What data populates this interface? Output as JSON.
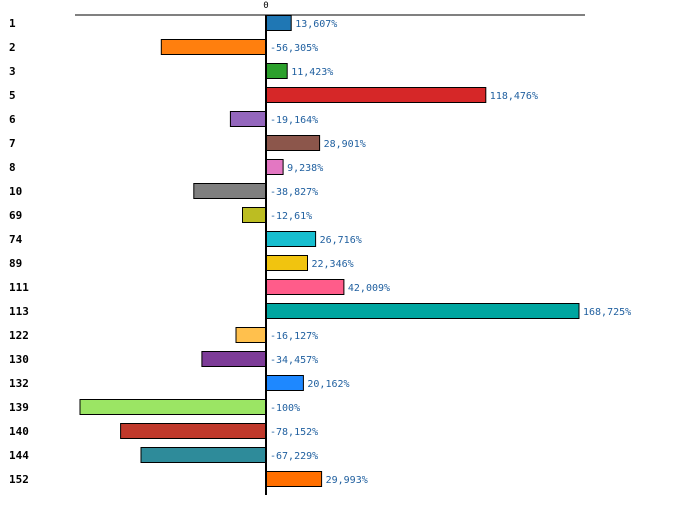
{
  "chart_data": {
    "type": "bar",
    "orientation": "horizontal",
    "axis_tick": "0",
    "categories": [
      "1",
      "2",
      "3",
      "5",
      "6",
      "7",
      "8",
      "10",
      "69",
      "74",
      "89",
      "111",
      "113",
      "122",
      "130",
      "132",
      "139",
      "140",
      "144",
      "152"
    ],
    "values": [
      13.607,
      -56.305,
      11.423,
      118.476,
      -19.164,
      28.901,
      9.238,
      -38.827,
      -12.61,
      26.716,
      22.346,
      42.009,
      168.725,
      -16.127,
      -34.457,
      20.162,
      -100,
      -78.152,
      -67.229,
      29.993
    ],
    "value_labels": [
      "13,607%",
      "-56,305%",
      "11,423%",
      "118,476%",
      "-19,164%",
      "28,901%",
      "9,238%",
      "-38,827%",
      "-12,61%",
      "26,716%",
      "22,346%",
      "42,009%",
      "168,725%",
      "-16,127%",
      "-34,457%",
      "20,162%",
      "-100%",
      "-78,152%",
      "-67,229%",
      "29,993%"
    ],
    "colors": [
      "#1f77b4",
      "#ff7f0e",
      "#2ca02c",
      "#d62728",
      "#9467bd",
      "#8c564b",
      "#e377c2",
      "#7f7f7f",
      "#bcbd22",
      "#17becf",
      "#f1c40f",
      "#ff5c8a",
      "#00a6a0",
      "#ffc04d",
      "#7d3c98",
      "#1e88ff",
      "#9be564",
      "#c0392b",
      "#2e8b9a",
      "#ff6f00"
    ],
    "xlim": [
      -100,
      168.725
    ],
    "grid": false,
    "legend": "none"
  }
}
